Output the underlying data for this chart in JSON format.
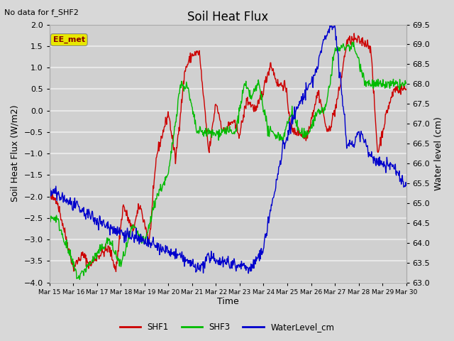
{
  "title": "Soil Heat Flux",
  "subtitle": "No data for f_SHF2",
  "xlabel": "Time",
  "ylabel_left": "Soil Heat Flux (W/m2)",
  "ylabel_right": "Water level (cm)",
  "ylim_left": [
    -4.0,
    2.0
  ],
  "ylim_right": [
    63.0,
    69.5
  ],
  "yticks_left": [
    -4.0,
    -3.5,
    -3.0,
    -2.5,
    -2.0,
    -1.5,
    -1.0,
    -0.5,
    0.0,
    0.5,
    1.0,
    1.5,
    2.0
  ],
  "yticks_right": [
    63.0,
    63.5,
    64.0,
    64.5,
    65.0,
    65.5,
    66.0,
    66.5,
    67.0,
    67.5,
    68.0,
    68.5,
    69.0,
    69.5
  ],
  "xtick_labels": [
    "Mar 15",
    "Mar 16",
    "Mar 17",
    "Mar 18",
    "Mar 19",
    "Mar 20",
    "Mar 21",
    "Mar 22",
    "Mar 23",
    "Mar 24",
    "Mar 25",
    "Mar 26",
    "Mar 27",
    "Mar 28",
    "Mar 29",
    "Mar 30"
  ],
  "color_shf1": "#cc0000",
  "color_shf3": "#00bb00",
  "color_water": "#0000cc",
  "fig_bg": "#d8d8d8",
  "plot_bg": "#d0d0d0",
  "grid_color": "#e8e8e8",
  "ee_met_box_facecolor": "#e8e800",
  "ee_met_text_color": "#880000",
  "legend_labels": [
    "SHF1",
    "SHF3",
    "WaterLevel_cm"
  ],
  "title_fontsize": 12,
  "label_fontsize": 9,
  "tick_fontsize": 8
}
